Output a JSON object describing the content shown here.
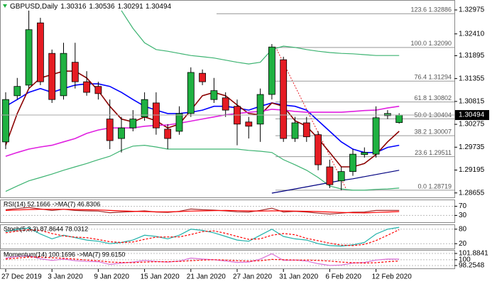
{
  "chart_data": [
    {
      "type": "candlestick",
      "symbol": "GBPUSD,Daily",
      "categories": [
        "27 Dec 2019",
        null,
        null,
        null,
        "3 Jan 2020",
        null,
        null,
        null,
        "9 Jan 2020",
        null,
        null,
        null,
        "15 Jan 2020",
        null,
        null,
        null,
        "21 Jan 2020",
        null,
        null,
        null,
        "27 Jan 2020",
        null,
        null,
        null,
        "31 Jan 2020",
        null,
        null,
        null,
        "6 Feb 2020",
        null,
        null,
        null,
        "12 Feb 2020",
        null,
        null
      ],
      "ohlc": {
        "open": [
          1.2986,
          1.3095,
          1.312,
          1.3267,
          1.3195,
          1.3095,
          1.3174,
          1.3128,
          1.3117,
          1.304,
          1.2994,
          1.3019,
          1.3045,
          1.3078,
          1.3016,
          1.3011,
          1.3053,
          1.3148,
          1.3086,
          1.309,
          1.307,
          1.3033,
          1.3028,
          1.3098,
          1.318,
          1.2994,
          1.3031,
          1.3003,
          1.2927,
          1.2894,
          1.2916,
          1.2956,
          1.2957,
          1.3048,
          1.30316
        ],
        "high": [
          1.3103,
          1.3137,
          1.3296,
          1.3279,
          1.3204,
          1.322,
          1.322,
          1.3153,
          1.3128,
          1.3086,
          1.3045,
          1.3061,
          1.3103,
          1.3103,
          1.3028,
          1.307,
          1.3162,
          1.3157,
          1.3137,
          1.3103,
          1.3086,
          1.3045,
          1.3112,
          1.3217,
          1.3187,
          1.3045,
          1.3045,
          1.3011,
          1.2944,
          1.2927,
          1.2969,
          1.2973,
          1.307,
          1.3061,
          1.30536
        ],
        "low": [
          1.2969,
          1.3086,
          1.3112,
          1.312,
          1.3078,
          1.3086,
          1.3112,
          1.3095,
          1.3086,
          1.2969,
          1.2961,
          1.3011,
          1.3036,
          1.3003,
          1.2969,
          1.3003,
          1.3045,
          1.312,
          1.3078,
          1.3045,
          1.2978,
          1.2994,
          1.2986,
          1.3086,
          1.2986,
          1.2986,
          1.2986,
          1.2919,
          1.2877,
          1.2872,
          1.2906,
          1.2949,
          1.2949,
          1.304,
          1.30291
        ],
        "close": [
          1.3086,
          1.3117,
          1.3251,
          1.3128,
          1.3086,
          1.3195,
          1.3128,
          1.3103,
          1.31,
          1.2989,
          1.3019,
          1.304,
          1.3086,
          1.3019,
          1.2994,
          1.3053,
          1.315,
          1.3128,
          1.3107,
          1.3061,
          1.3028,
          1.3023,
          1.3098,
          1.321,
          1.2994,
          1.3031,
          1.2998,
          1.2932,
          1.2885,
          1.2916,
          1.2957,
          1.2961,
          1.3043,
          1.3053,
          1.30494
        ]
      },
      "up_color": "#1fb141",
      "down_color": "#e51c23",
      "series": [
        {
          "color": "#0000ff",
          "values": [
            1.307,
            1.3086,
            1.3103,
            1.3112,
            1.3103,
            1.3112,
            1.312,
            1.3123,
            1.3123,
            1.3117,
            1.3103,
            1.3086,
            1.307,
            1.3061,
            1.3053,
            1.3053,
            1.3056,
            1.3061,
            1.307,
            1.307,
            1.3066,
            1.3061,
            1.307,
            1.3078,
            1.3073,
            1.307,
            1.3061,
            1.3036,
            1.3011,
            1.2986,
            1.2969,
            1.2961,
            1.2961,
            1.2973,
            1.2978
          ]
        },
        {
          "color": "#8b0000",
          "values": [
            1.2978,
            1.3053,
            1.3112,
            1.3137,
            1.3145,
            1.3153,
            1.3153,
            1.3137,
            1.3107,
            1.307,
            1.304,
            1.3033,
            1.3045,
            1.3036,
            1.3019,
            1.3028,
            1.3061,
            1.3095,
            1.3103,
            1.3095,
            1.3073,
            1.3053,
            1.305,
            1.3078,
            1.307,
            1.3036,
            1.3023,
            1.2994,
            1.2961,
            1.2927,
            1.2927,
            1.2935,
            1.2956,
            1.2986,
            1.3011
          ]
        },
        {
          "color": "#e020e0",
          "values": [
            1.2952,
            1.2961,
            1.2969,
            1.2974,
            1.2978,
            1.2986,
            1.2994,
            1.3006,
            1.3014,
            1.3019,
            1.3019,
            1.3019,
            1.3023,
            1.3025,
            1.3026,
            1.303,
            1.3035,
            1.304,
            1.3045,
            1.305,
            1.3053,
            1.3056,
            1.3058,
            1.3063,
            1.3061,
            1.3058,
            1.3056,
            1.3056,
            1.3056,
            1.3056,
            1.3058,
            1.306,
            1.3061,
            1.3066,
            1.307
          ]
        },
        {
          "color": "#3cb371",
          "values": [
            null,
            null,
            null,
            null,
            null,
            null,
            null,
            null,
            null,
            null,
            1.3296,
            1.3254,
            1.322,
            1.3204,
            1.32,
            1.3195,
            1.319,
            1.3187,
            1.3184,
            1.3179,
            1.3174,
            1.317,
            1.3174,
            1.3204,
            1.3212,
            1.3209,
            1.3204,
            1.32,
            1.3197,
            1.3195,
            1.3194,
            1.3192,
            1.319,
            1.319,
            1.319
          ]
        },
        {
          "color": "#3cb371",
          "values": [
            1.2869,
            1.2882,
            1.2894,
            1.2902,
            1.291,
            1.2919,
            1.2927,
            1.2935,
            1.2944,
            1.2952,
            1.2966,
            1.2976,
            1.2978,
            1.2974,
            1.2969,
            1.2969,
            1.2969,
            1.2969,
            1.2969,
            1.2969,
            1.2969,
            1.2966,
            1.2964,
            1.2961,
            1.2944,
            1.2932,
            1.2919,
            1.2902,
            1.2882,
            1.2875,
            1.2872,
            1.2872,
            1.2874,
            1.2875,
            1.2877
          ]
        },
        {
          "color": "#000080",
          "values": [
            null,
            null,
            null,
            null,
            null,
            null,
            null,
            null,
            null,
            null,
            null,
            null,
            null,
            null,
            null,
            null,
            null,
            null,
            null,
            null,
            null,
            null,
            null,
            1.2865,
            1.287,
            1.2875,
            1.288,
            1.2885,
            1.289,
            1.2895,
            1.2899,
            1.2904,
            1.2909,
            1.2914,
            1.2919
          ]
        }
      ],
      "fib_levels": [
        {
          "label": "123.6 1.32886",
          "value": 1.32886
        },
        {
          "label": "100.0 1.32090",
          "value": 1.3209
        },
        {
          "label": "76.4 1.31294",
          "value": 1.31294
        },
        {
          "label": "61.8 1.30802",
          "value": 1.30802
        },
        {
          "label": "50.0 1.30404",
          "value": 1.30404
        },
        {
          "label": "38.2 1.30007",
          "value": 1.30007
        },
        {
          "label": "23.6 1.29511",
          "value": 1.29511
        },
        {
          "label": "0.0 1.28719",
          "value": 1.28719
        }
      ],
      "ylim": [
        1.2855,
        1.3321
      ],
      "yticks": [
        1.32975,
        {
          "value": 1.3241,
          "label": "1.32410"
        },
        1.31895,
        1.31355,
        1.30815,
        1.30275,
        1.29735,
        1.29195,
        1.28655
      ]
    },
    {
      "type": "line",
      "title": "RSI(14) 52.1666 ->MA(7) 46.8306",
      "series": [
        {
          "color": "#a52a2a",
          "values": [
            55,
            60,
            65,
            58,
            52,
            57,
            52,
            50,
            49,
            42,
            45,
            47,
            50,
            45,
            43,
            48,
            58,
            55,
            53,
            50,
            46,
            45,
            52,
            62,
            45,
            48,
            45,
            40,
            36,
            40,
            44,
            45,
            52,
            52,
            52.1666
          ]
        },
        {
          "color": "#ff0000",
          "values": [
            52,
            54,
            56,
            57,
            57,
            57,
            56,
            55,
            54,
            52,
            50,
            48,
            47,
            46,
            46,
            47,
            49,
            50,
            51,
            52,
            51,
            50,
            49,
            50,
            50,
            49,
            48,
            47,
            45,
            43,
            42,
            41,
            43,
            45,
            46.8306
          ]
        }
      ],
      "ylim": [
        0,
        100
      ],
      "yticks": [
        70,
        30
      ]
    },
    {
      "type": "line",
      "title": "Stoch(5,3,3) 87.8644 78.0312",
      "series": [
        {
          "color": "#20b2aa",
          "values": [
            70,
            80,
            85,
            60,
            40,
            55,
            45,
            35,
            30,
            20,
            25,
            35,
            55,
            50,
            40,
            55,
            80,
            75,
            65,
            50,
            35,
            30,
            55,
            80,
            50,
            40,
            35,
            20,
            12,
            10,
            15,
            25,
            60,
            80,
            87.8644
          ]
        },
        {
          "color": "#ff0000",
          "dashed": true,
          "values": [
            65,
            72,
            78,
            75,
            62,
            52,
            47,
            45,
            37,
            28,
            25,
            27,
            38,
            47,
            48,
            48,
            58,
            70,
            73,
            63,
            50,
            38,
            40,
            55,
            62,
            57,
            42,
            32,
            22,
            14,
            12,
            17,
            33,
            55,
            78.0312
          ]
        }
      ],
      "ylim": [
        0,
        100
      ],
      "yticks": [
        80,
        20
      ]
    },
    {
      "type": "line",
      "title": "Momentum(14) 100.1696 ->MA(7) 99.6150",
      "series": [
        {
          "color": "#da70d6",
          "values": [
            100.5,
            101,
            101.2,
            100.3,
            99.8,
            100.2,
            99.7,
            99.5,
            99.4,
            98.6,
            99,
            99.3,
            99.8,
            99.5,
            99.3,
            99.6,
            100.5,
            100.2,
            100,
            99.6,
            99.2,
            99.3,
            100.2,
            101.8,
            99.8,
            99.9,
            99.6,
            98.8,
            98.3,
            98.4,
            99,
            99.2,
            99.9,
            100.2,
            100.1696
          ]
        },
        {
          "color": "#ff0000",
          "dashed": true,
          "values": [
            100.2,
            100.5,
            100.8,
            100.8,
            100.6,
            100.4,
            100.2,
            99.9,
            99.7,
            99.3,
            99.2,
            99.1,
            99.3,
            99.4,
            99.4,
            99.5,
            99.7,
            99.9,
            100,
            99.9,
            99.7,
            99.6,
            99.7,
            100.1,
            100,
            99.9,
            99.9,
            99.8,
            99.6,
            99.3,
            99.1,
            99.0,
            99.1,
            99.4,
            99.615
          ]
        }
      ],
      "ylim": [
        97.4,
        102.95
      ],
      "yticks": [
        101.8841,
        100,
        98.2548
      ]
    }
  ]
}
